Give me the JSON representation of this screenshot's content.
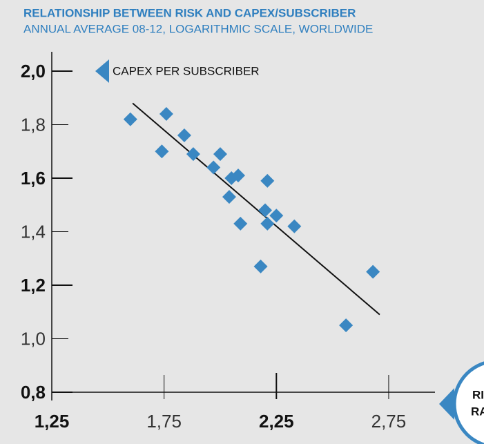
{
  "chart_data": {
    "type": "scatter",
    "title": "RELATIONSHIP BETWEEN RISK AND CAPEX/SUBSCRIBER",
    "subtitle": "ANNUAL AVERAGE 08-12, LOGARITHMIC SCALE, WORLDWIDE",
    "y_label": "CAPEX PER SUBSCRIBER",
    "x_label": [
      "RI",
      "RA"
    ],
    "color": "#3a87c2",
    "x": [
      1.6,
      1.76,
      1.74,
      1.84,
      1.88,
      2.0,
      1.97,
      2.05,
      2.08,
      2.21,
      2.04,
      2.2,
      2.25,
      2.09,
      2.21,
      2.33,
      2.18,
      2.68,
      2.56
    ],
    "values": [
      1.82,
      1.84,
      1.7,
      1.76,
      1.69,
      1.69,
      1.64,
      1.6,
      1.61,
      1.59,
      1.53,
      1.48,
      1.46,
      1.43,
      1.43,
      1.42,
      1.27,
      1.25,
      1.05
    ],
    "trendline": {
      "x": [
        1.61,
        2.71
      ],
      "y": [
        1.88,
        1.09
      ]
    },
    "xlim": [
      1.25,
      2.95
    ],
    "ylim": [
      0.8,
      2.0
    ],
    "xticks": [
      {
        "value": 1.25,
        "label": "1,25"
      },
      {
        "value": 1.75,
        "label": "1,75"
      },
      {
        "value": 2.25,
        "label": "2,25"
      },
      {
        "value": 2.75,
        "label": "2,75"
      }
    ],
    "yticks": [
      {
        "value": 0.8,
        "label": "0,8"
      },
      {
        "value": 1.0,
        "label": "1,0"
      },
      {
        "value": 1.2,
        "label": "1,2"
      },
      {
        "value": 1.4,
        "label": "1,4"
      },
      {
        "value": 1.6,
        "label": "1,6"
      },
      {
        "value": 1.8,
        "label": "1,8"
      },
      {
        "value": 2.0,
        "label": "2,0"
      }
    ]
  }
}
